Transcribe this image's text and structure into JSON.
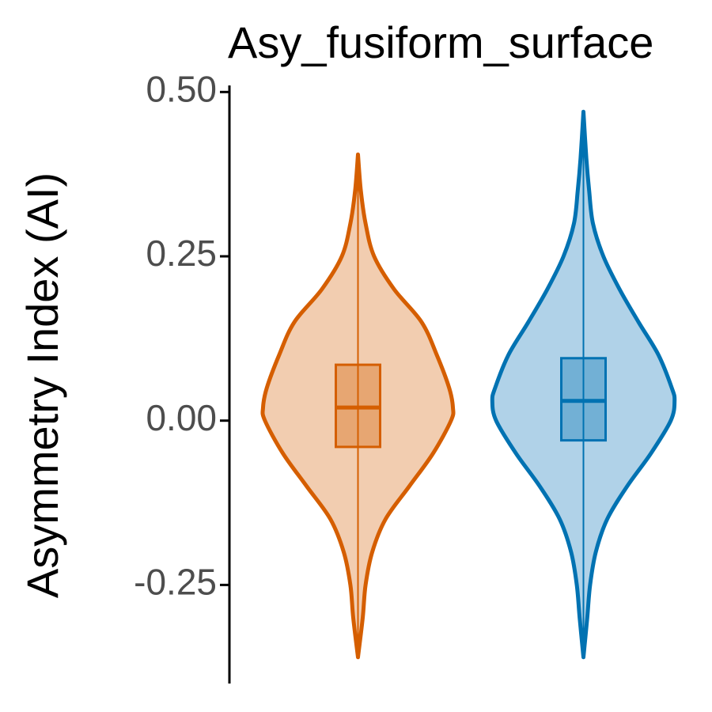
{
  "chart_data": {
    "type": "violin",
    "title": "Asy_fusiform_surface",
    "y_label": "Asymmetry Index (AI)",
    "categories": [
      null,
      null
    ],
    "ylim": [
      -0.4,
      0.51
    ],
    "yticks": [
      {
        "value": -0.25,
        "label": "-0.25"
      },
      {
        "value": 0,
        "label": "0.00"
      },
      {
        "value": 0.25,
        "label": "0.25"
      },
      {
        "value": 0.5,
        "label": "0.50"
      }
    ],
    "series": [
      {
        "color": "#d55e00",
        "fill": "#f2cdb0",
        "violin": {
          "y": [
            0.405,
            0.35,
            0.3,
            0.25,
            0.2,
            0.15,
            0.1,
            0.05,
            0.02,
            0,
            -0.05,
            -0.1,
            -0.15,
            -0.2,
            -0.25,
            -0.3,
            -0.36
          ],
          "density": [
            0,
            0.03,
            0.08,
            0.17,
            0.38,
            0.67,
            0.83,
            0.96,
            1,
            0.98,
            0.79,
            0.54,
            0.29,
            0.15,
            0.08,
            0.05,
            0
          ]
        },
        "box": {
          "q1": -0.04,
          "median": 0.02,
          "q3": 0.085
        }
      },
      {
        "color": "#0072b2",
        "fill": "#b0d2e8",
        "violin": {
          "y": [
            0.47,
            0.4,
            0.35,
            0.3,
            0.25,
            0.2,
            0.15,
            0.1,
            0.05,
            0.03,
            0,
            -0.05,
            -0.1,
            -0.15,
            -0.2,
            -0.25,
            -0.3,
            -0.36
          ],
          "density": [
            0,
            0.03,
            0.06,
            0.1,
            0.21,
            0.38,
            0.58,
            0.79,
            0.93,
            0.96,
            0.92,
            0.71,
            0.46,
            0.25,
            0.13,
            0.07,
            0.04,
            0
          ]
        },
        "box": {
          "q1": -0.03,
          "median": 0.03,
          "q3": 0.095
        }
      }
    ]
  }
}
